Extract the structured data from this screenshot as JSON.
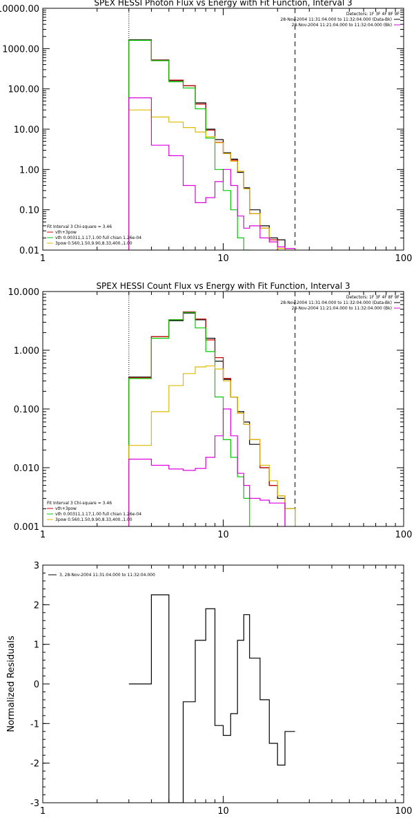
{
  "colors": {
    "black": "#000000",
    "red": "#cc0000",
    "green": "#00cc00",
    "magenta": "#dd00dd",
    "yellow": "#ddbb00"
  },
  "chart_data": [
    {
      "type": "line",
      "title": "SPEX HESSI Photon Flux vs Energy with Fit Function, Interval 3",
      "xscale": "log",
      "yscale": "log",
      "xlim": [
        1,
        100
      ],
      "ylim": [
        0.01,
        10000
      ],
      "x_ticks": [
        1,
        10,
        100
      ],
      "x_tick_labels": [
        "1",
        "10",
        "100"
      ],
      "y_ticks": [
        0.01,
        0.1,
        1,
        10,
        100,
        1000,
        10000
      ],
      "y_tick_labels": [
        "0.01",
        "0.10",
        "1.00",
        "10.00",
        "100.00",
        "1000.00",
        "10000.00"
      ],
      "bin_edges": [
        3,
        4,
        5,
        6,
        7,
        8,
        9,
        10,
        11,
        12,
        13,
        14,
        16,
        18,
        20,
        22,
        25,
        28
      ],
      "vlines": [
        {
          "x": 3,
          "style": "dotted"
        },
        {
          "x": 25,
          "style": "dashed"
        }
      ],
      "top_legend": {
        "detectors": "Detectors: 1F 3F 4F 8F 9F",
        "lines": [
          {
            "text": "28-Nov-2004 11:31:04.000 to 11:32:04.000 (Data-Bk)",
            "color": "#000000"
          },
          {
            "text": "28-Nov-2004 11:21:04.000 to 11:32:04.000 (Bk)",
            "color": "#dd00dd"
          }
        ]
      },
      "fit_legend": {
        "header": "Fit Interval 3   Chi-square = 3.46",
        "lines": [
          {
            "text": "vth+3pow",
            "color": "#cc0000"
          },
          {
            "text": "vth 0.00311,1.17,1.00  full chian 1.26e-04",
            "color": "#00cc00"
          },
          {
            "text": "3pow 0.560,1.50,9.90,8.33,400.,1.00",
            "color": "#ddbb00"
          }
        ]
      },
      "series": [
        {
          "color": "#000000",
          "values": [
            1650,
            520,
            160,
            120,
            45,
            10,
            5.5,
            2.6,
            1.8,
            0.85,
            0.35,
            0.1,
            0.04,
            0.02,
            0.018,
            null,
            null
          ]
        },
        {
          "color": "#cc0000",
          "values": [
            1600,
            510,
            165,
            120,
            42,
            9.5,
            4.7,
            2.5,
            1.7,
            0.9,
            0.33,
            0.08,
            0.035,
            0.018,
            null,
            null,
            null
          ]
        },
        {
          "color": "#00cc00",
          "values": [
            1600,
            500,
            150,
            105,
            32,
            6,
            1.0,
            0.3,
            0.1,
            0.02,
            0.01,
            null,
            null,
            null,
            null,
            null,
            null
          ]
        },
        {
          "color": "#ddbb00",
          "values": [
            30,
            20,
            15,
            11,
            8.5,
            6.5,
            4.6,
            2.5,
            1.6,
            0.9,
            0.33,
            0.08,
            0.035,
            0.016,
            0.011,
            0.01,
            null
          ]
        },
        {
          "color": "#dd00dd",
          "values": [
            60,
            4,
            2.2,
            0.4,
            0.15,
            0.2,
            0.5,
            1.0,
            0.4,
            0.07,
            0.035,
            0.04,
            0.02,
            0.016,
            0.012,
            0.011,
            null
          ]
        }
      ]
    },
    {
      "type": "line",
      "title": "SPEX HESSI Count Flux vs Energy with Fit Function, Interval 3",
      "xscale": "log",
      "yscale": "log",
      "xlim": [
        1,
        100
      ],
      "ylim": [
        0.001,
        10
      ],
      "x_ticks": [
        1,
        10,
        100
      ],
      "x_tick_labels": [
        "1",
        "10",
        "100"
      ],
      "y_ticks": [
        0.001,
        0.01,
        0.1,
        1,
        10
      ],
      "y_tick_labels": [
        "0.001",
        "0.010",
        "0.100",
        "1.000",
        "10.000"
      ],
      "bin_edges": [
        3,
        4,
        5,
        6,
        7,
        8,
        9,
        10,
        11,
        12,
        13,
        14,
        16,
        18,
        20,
        22,
        25,
        28
      ],
      "vlines": [
        {
          "x": 3,
          "style": "dotted"
        },
        {
          "x": 25,
          "style": "dashed"
        }
      ],
      "top_legend": {
        "detectors": "Detectors: 1F 3F 4F 8F 9F",
        "lines": [
          {
            "text": "28-Nov-2004 11:31:04.000 to 11:32:04.000 (Data-Bk)",
            "color": "#000000"
          },
          {
            "text": "28-Nov-2004 11:21:04.000 to 11:32:04.000 (Bk)",
            "color": "#dd00dd"
          }
        ]
      },
      "fit_legend": {
        "header": "Fit Interval 3   Chi-square = 3.46",
        "lines": [
          {
            "text": "vth+3pow",
            "color": "#cc0000"
          },
          {
            "text": "vth 0.00311,1.17,1.00  full chian 1.26e-04",
            "color": "#00cc00"
          },
          {
            "text": "3pow 0.560,1.50,9.90,8.33,400.,1.00",
            "color": "#ddbb00"
          }
        ]
      },
      "series": [
        {
          "color": "#000000",
          "values": [
            0.35,
            1.7,
            3.2,
            4.3,
            3.3,
            1.6,
            0.65,
            0.32,
            0.16,
            0.09,
            0.06,
            0.025,
            0.01,
            0.005,
            0.003,
            0.002,
            null
          ]
        },
        {
          "color": "#cc0000",
          "values": [
            0.34,
            1.7,
            3.3,
            4.5,
            3.4,
            1.5,
            0.75,
            0.33,
            0.16,
            0.085,
            0.055,
            0.03,
            0.01,
            0.005,
            0.0033,
            null,
            null
          ]
        },
        {
          "color": "#00cc00",
          "values": [
            0.33,
            1.6,
            3.3,
            4.4,
            2.4,
            0.95,
            0.16,
            0.03,
            0.015,
            0.007,
            0.003,
            null,
            null,
            null,
            null,
            null,
            null
          ]
        },
        {
          "color": "#ddbb00",
          "values": [
            0.024,
            0.09,
            0.25,
            0.4,
            0.52,
            0.54,
            0.48,
            0.3,
            0.16,
            0.085,
            0.055,
            0.03,
            0.011,
            0.006,
            0.0033,
            0.002,
            null
          ]
        },
        {
          "color": "#dd00dd",
          "values": [
            0.014,
            0.011,
            0.0095,
            0.009,
            0.0097,
            0.015,
            0.035,
            0.1,
            0.035,
            0.008,
            0.005,
            0.003,
            0.0028,
            0.0025,
            0.0025,
            null,
            null
          ]
        }
      ]
    },
    {
      "type": "line",
      "title": "",
      "xscale": "log",
      "yscale": "linear",
      "xlim": [
        1,
        100
      ],
      "ylim": [
        -3,
        3
      ],
      "ylabel": "Normalized Residuals",
      "x_ticks": [
        1,
        10,
        100
      ],
      "x_tick_labels": [
        "1",
        "10",
        "100"
      ],
      "y_ticks": [
        -3,
        -2,
        -1,
        0,
        1,
        2,
        3
      ],
      "y_tick_labels": [
        "-3",
        "-2",
        "-1",
        "0",
        "1",
        "2",
        "3"
      ],
      "bin_edges": [
        3,
        4,
        5,
        6,
        7,
        8,
        9,
        10,
        11,
        12,
        13,
        14,
        16,
        18,
        20,
        22,
        25
      ],
      "legend": {
        "text": "3, 28-Nov-2004 11:31:04.000 to 11:32:04.000",
        "color": "#000000"
      },
      "series": [
        {
          "color": "#000000",
          "values": [
            0.0,
            2.25,
            -3.05,
            -0.45,
            1.1,
            1.9,
            -1.05,
            -1.3,
            -0.75,
            1.1,
            1.75,
            0.65,
            -0.4,
            -1.5,
            -2.05,
            -1.2
          ]
        }
      ]
    }
  ]
}
